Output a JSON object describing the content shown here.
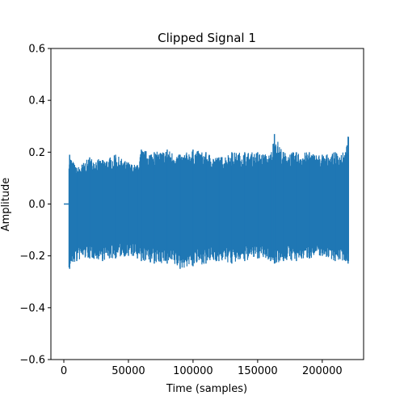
{
  "chart_data": {
    "type": "line",
    "title": "Clipped Signal 1",
    "xlabel": "Time (samples)",
    "ylabel": "Amplitude",
    "xlim": [
      -10000,
      232000
    ],
    "ylim": [
      -0.6,
      0.6
    ],
    "xticks": [
      0,
      50000,
      100000,
      150000,
      200000
    ],
    "xtick_labels": [
      "0",
      "50000",
      "100000",
      "150000",
      "200000"
    ],
    "yticks": [
      -0.6,
      -0.4,
      -0.2,
      0.0,
      0.2,
      0.4,
      0.6
    ],
    "ytick_labels": [
      "−0.6",
      "−0.4",
      "−0.2",
      "0.0",
      "0.2",
      "0.4",
      "0.6"
    ],
    "grid": false,
    "series": [
      {
        "color": "#1f77b4",
        "silence_x": [
          0,
          4000
        ],
        "signal_x": [
          4000,
          220500
        ],
        "envelope_x": [
          4500,
          10000,
          20000,
          30000,
          40000,
          50000,
          57000,
          60000,
          70000,
          80000,
          90000,
          100000,
          110000,
          120000,
          130000,
          140000,
          150000,
          160000,
          163000,
          170000,
          180000,
          190000,
          200000,
          210000,
          218000,
          220000
        ],
        "envelope_upper": [
          0.19,
          0.14,
          0.18,
          0.17,
          0.19,
          0.16,
          0.15,
          0.21,
          0.2,
          0.21,
          0.19,
          0.21,
          0.2,
          0.18,
          0.2,
          0.2,
          0.2,
          0.19,
          0.27,
          0.2,
          0.2,
          0.2,
          0.19,
          0.2,
          0.2,
          0.26
        ],
        "envelope_lower": [
          -0.25,
          -0.22,
          -0.21,
          -0.22,
          -0.21,
          -0.2,
          -0.21,
          -0.22,
          -0.23,
          -0.23,
          -0.25,
          -0.24,
          -0.23,
          -0.22,
          -0.23,
          -0.22,
          -0.21,
          -0.22,
          -0.23,
          -0.22,
          -0.22,
          -0.21,
          -0.2,
          -0.22,
          -0.22,
          -0.23
        ]
      }
    ]
  }
}
